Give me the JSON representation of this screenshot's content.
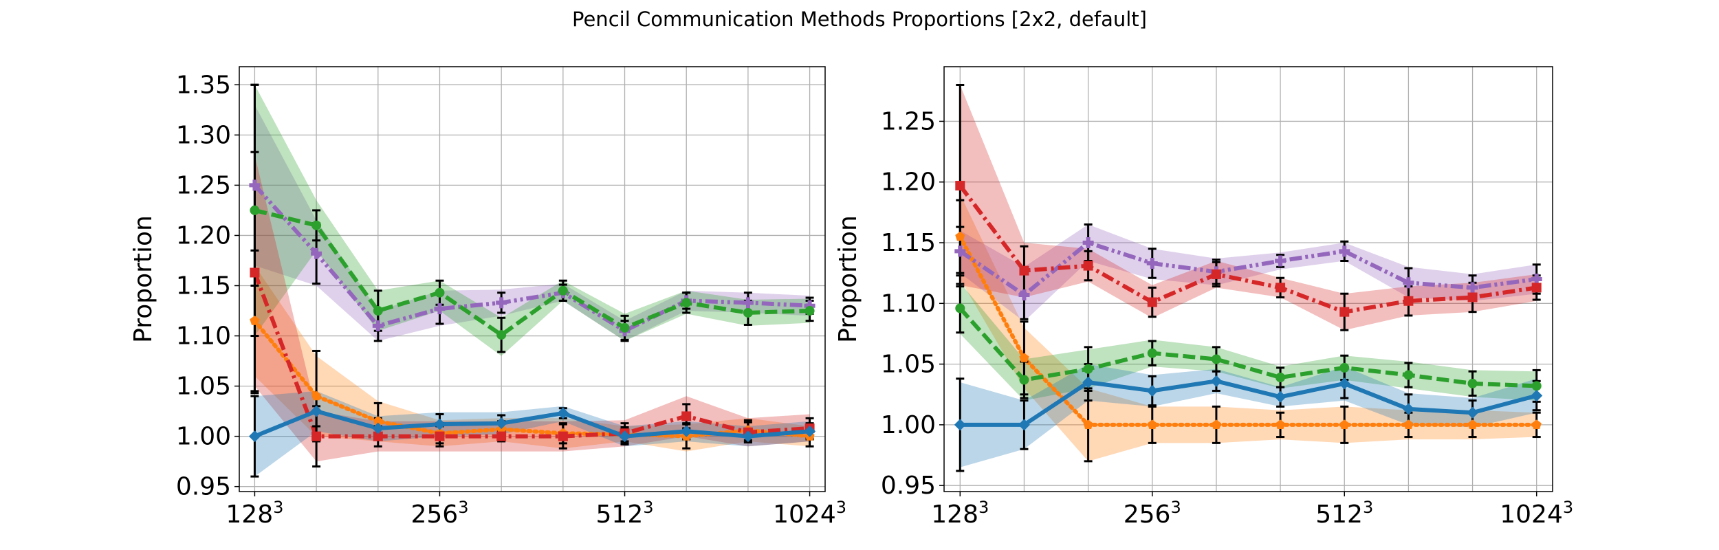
{
  "figure": {
    "title": "Pencil Communication Methods Proportions [2x2, default]"
  },
  "colors": {
    "blue": "#1f77b4",
    "orange": "#ff7f0e",
    "green": "#2ca02c",
    "red": "#d62728",
    "purple": "#9467bd",
    "grid": "#b0b0b0",
    "errorbar": "#000000"
  },
  "chart_data": [
    {
      "type": "line",
      "ylabel": "Proportion",
      "ylim": [
        0.945,
        1.368
      ],
      "yticks": [
        0.95,
        1.0,
        1.05,
        1.1,
        1.15,
        1.2,
        1.25,
        1.3,
        1.35
      ],
      "ytick_labels": [
        "0.95",
        "1.00",
        "1.05",
        "1.10",
        "1.15",
        "1.20",
        "1.25",
        "1.30",
        "1.35"
      ],
      "xlim": [
        -0.25,
        9.25
      ],
      "xticks": [
        0,
        3,
        6,
        9
      ],
      "xtick_labels": [
        {
          "base": "128",
          "exp": "3"
        },
        {
          "base": "256",
          "exp": "3"
        },
        {
          "base": "512",
          "exp": "3"
        },
        {
          "base": "1024",
          "exp": "3"
        }
      ],
      "grid": true,
      "x": [
        0,
        1,
        2,
        3,
        4,
        5,
        6,
        7,
        8,
        9
      ],
      "series": [
        {
          "color": "orange",
          "linestyle": "dotted",
          "marker": "pentagon",
          "values": [
            1.115,
            1.04,
            1.015,
            1.003,
            1.007,
            1.003,
            1.002,
            1.0,
            1.006,
            1.0
          ],
          "band": [
            [
              1.06,
              1.17
            ],
            [
              1.0,
              1.08
            ],
            [
              0.995,
              1.035
            ],
            [
              0.99,
              1.016
            ],
            [
              0.995,
              1.018
            ],
            [
              0.988,
              1.018
            ],
            [
              0.995,
              1.01
            ],
            [
              0.985,
              1.012
            ],
            [
              0.995,
              1.018
            ],
            [
              0.99,
              1.01
            ]
          ],
          "err": [
            0.07,
            0.045,
            0.018,
            0.01,
            0.008,
            0.01,
            0.007,
            0.012,
            0.01,
            0.01
          ]
        },
        {
          "color": "purple",
          "linestyle": "dashdotdot",
          "marker": "plus",
          "values": [
            1.25,
            1.182,
            1.11,
            1.127,
            1.133,
            1.143,
            1.105,
            1.135,
            1.133,
            1.13
          ],
          "band": [
            [
              1.17,
              1.33
            ],
            [
              1.15,
              1.215
            ],
            [
              1.095,
              1.125
            ],
            [
              1.11,
              1.145
            ],
            [
              1.12,
              1.146
            ],
            [
              1.135,
              1.152
            ],
            [
              1.095,
              1.115
            ],
            [
              1.125,
              1.145
            ],
            [
              1.123,
              1.143
            ],
            [
              1.12,
              1.14
            ]
          ],
          "err": [
            0.1,
            0.03,
            0.015,
            0.015,
            0.01,
            0.008,
            0.01,
            0.008,
            0.01,
            0.008
          ]
        },
        {
          "color": "green",
          "linestyle": "dashed",
          "marker": "circle",
          "values": [
            1.225,
            1.21,
            1.125,
            1.143,
            1.101,
            1.145,
            1.108,
            1.133,
            1.123,
            1.125
          ],
          "band": [
            [
              1.1,
              1.35
            ],
            [
              1.185,
              1.235
            ],
            [
              1.105,
              1.145
            ],
            [
              1.125,
              1.155
            ],
            [
              1.08,
              1.118
            ],
            [
              1.135,
              1.155
            ],
            [
              1.095,
              1.122
            ],
            [
              1.122,
              1.145
            ],
            [
              1.11,
              1.136
            ],
            [
              1.113,
              1.137
            ]
          ],
          "err": [
            0.125,
            0.015,
            0.02,
            0.012,
            0.017,
            0.01,
            0.012,
            0.01,
            0.012,
            0.01
          ]
        },
        {
          "color": "red",
          "linestyle": "dashdot",
          "marker": "square",
          "values": [
            1.163,
            1.0,
            1.0,
            1.0,
            1.0,
            1.0,
            1.003,
            1.02,
            1.004,
            1.008
          ],
          "band": [
            [
              1.05,
              1.28
            ],
            [
              0.975,
              1.025
            ],
            [
              0.985,
              1.015
            ],
            [
              0.985,
              1.015
            ],
            [
              0.985,
              1.015
            ],
            [
              0.985,
              1.015
            ],
            [
              0.99,
              1.016
            ],
            [
              1.0,
              1.04
            ],
            [
              0.99,
              1.018
            ],
            [
              0.995,
              1.022
            ]
          ],
          "err": [
            0.12,
            0.03,
            0.01,
            0.01,
            0.005,
            0.012,
            0.01,
            0.012,
            0.01,
            0.01
          ]
        },
        {
          "color": "blue",
          "linestyle": "solid",
          "marker": "diamond",
          "values": [
            1.0,
            1.025,
            1.008,
            1.012,
            1.013,
            1.023,
            1.0,
            1.005,
            1.0,
            1.005
          ],
          "band": [
            [
              0.96,
              1.04
            ],
            [
              1.005,
              1.045
            ],
            [
              0.995,
              1.02
            ],
            [
              1.0,
              1.024
            ],
            [
              1.002,
              1.024
            ],
            [
              1.015,
              1.03
            ],
            [
              0.99,
              1.01
            ],
            [
              0.995,
              1.015
            ],
            [
              0.99,
              1.01
            ],
            [
              0.995,
              1.015
            ]
          ],
          "err": [
            0.04,
            0.015,
            0.01,
            0.01,
            0.008,
            0.005,
            0.008,
            0.008,
            0.006,
            0.008
          ]
        }
      ]
    },
    {
      "type": "line",
      "ylabel": "Proportion",
      "ylim": [
        0.945,
        1.295
      ],
      "yticks": [
        0.95,
        1.0,
        1.05,
        1.1,
        1.15,
        1.2,
        1.25
      ],
      "ytick_labels": [
        "0.95",
        "1.00",
        "1.05",
        "1.10",
        "1.15",
        "1.20",
        "1.25"
      ],
      "xlim": [
        -0.25,
        9.25
      ],
      "xticks": [
        0,
        3,
        6,
        9
      ],
      "xtick_labels": [
        {
          "base": "128",
          "exp": "3"
        },
        {
          "base": "256",
          "exp": "3"
        },
        {
          "base": "512",
          "exp": "3"
        },
        {
          "base": "1024",
          "exp": "3"
        }
      ],
      "grid": true,
      "x": [
        0,
        1,
        2,
        3,
        4,
        5,
        6,
        7,
        8,
        9
      ],
      "series": [
        {
          "color": "orange",
          "linestyle": "dotted",
          "marker": "pentagon",
          "values": [
            1.155,
            1.055,
            1.0,
            1.0,
            1.0,
            1.0,
            1.0,
            1.0,
            1.0,
            1.0
          ],
          "band": [
            [
              1.12,
              1.19
            ],
            [
              1.03,
              1.08
            ],
            [
              0.97,
              1.03
            ],
            [
              0.985,
              1.015
            ],
            [
              0.985,
              1.015
            ],
            [
              0.988,
              1.012
            ],
            [
              0.985,
              1.015
            ],
            [
              0.988,
              1.012
            ],
            [
              0.988,
              1.012
            ],
            [
              0.99,
              1.01
            ]
          ],
          "err": [
            0.03,
            0.03,
            0.03,
            0.015,
            0.015,
            0.01,
            0.015,
            0.01,
            0.01,
            0.01
          ]
        },
        {
          "color": "purple",
          "linestyle": "dashdotdot",
          "marker": "plus",
          "values": [
            1.143,
            1.107,
            1.15,
            1.133,
            1.126,
            1.135,
            1.143,
            1.117,
            1.113,
            1.12
          ],
          "band": [
            [
              1.125,
              1.16
            ],
            [
              1.085,
              1.13
            ],
            [
              1.135,
              1.165
            ],
            [
              1.12,
              1.145
            ],
            [
              1.115,
              1.137
            ],
            [
              1.128,
              1.142
            ],
            [
              1.135,
              1.15
            ],
            [
              1.105,
              1.13
            ],
            [
              1.102,
              1.124
            ],
            [
              1.108,
              1.132
            ]
          ],
          "err": [
            0.02,
            0.02,
            0.015,
            0.012,
            0.01,
            0.005,
            0.008,
            0.012,
            0.01,
            0.012
          ]
        },
        {
          "color": "green",
          "linestyle": "dashed",
          "marker": "circle",
          "values": [
            1.096,
            1.037,
            1.046,
            1.059,
            1.054,
            1.039,
            1.047,
            1.041,
            1.034,
            1.032
          ],
          "band": [
            [
              1.075,
              1.117
            ],
            [
              1.02,
              1.054
            ],
            [
              1.03,
              1.062
            ],
            [
              1.048,
              1.07
            ],
            [
              1.044,
              1.064
            ],
            [
              1.03,
              1.048
            ],
            [
              1.037,
              1.057
            ],
            [
              1.03,
              1.052
            ],
            [
              1.023,
              1.045
            ],
            [
              1.02,
              1.044
            ]
          ],
          "err": [
            0.02,
            0.015,
            0.018,
            0.01,
            0.01,
            0.008,
            0.01,
            0.01,
            0.01,
            0.013
          ]
        },
        {
          "color": "red",
          "linestyle": "dashdot",
          "marker": "square",
          "values": [
            1.197,
            1.127,
            1.131,
            1.101,
            1.124,
            1.113,
            1.093,
            1.102,
            1.105,
            1.113
          ],
          "band": [
            [
              1.115,
              1.28
            ],
            [
              1.105,
              1.15
            ],
            [
              1.118,
              1.145
            ],
            [
              1.088,
              1.115
            ],
            [
              1.113,
              1.135
            ],
            [
              1.105,
              1.121
            ],
            [
              1.078,
              1.108
            ],
            [
              1.09,
              1.114
            ],
            [
              1.093,
              1.117
            ],
            [
              1.102,
              1.124
            ]
          ],
          "err": [
            0.083,
            0.02,
            0.012,
            0.012,
            0.01,
            0.008,
            0.015,
            0.012,
            0.012,
            0.01
          ]
        },
        {
          "color": "blue",
          "linestyle": "solid",
          "marker": "diamond",
          "values": [
            1.0,
            1.0,
            1.035,
            1.028,
            1.036,
            1.023,
            1.034,
            1.013,
            1.01,
            1.024
          ],
          "band": [
            [
              0.965,
              1.035
            ],
            [
              0.98,
              1.02
            ],
            [
              1.02,
              1.05
            ],
            [
              1.015,
              1.041
            ],
            [
              1.026,
              1.046
            ],
            [
              1.015,
              1.031
            ],
            [
              1.02,
              1.048
            ],
            [
              1.0,
              1.026
            ],
            [
              0.998,
              1.022
            ],
            [
              1.01,
              1.038
            ]
          ],
          "err": [
            0.038,
            0.02,
            0.015,
            0.012,
            0.008,
            0.008,
            0.012,
            0.012,
            0.01,
            0.012
          ]
        }
      ]
    }
  ]
}
